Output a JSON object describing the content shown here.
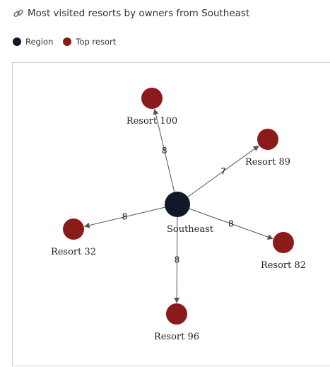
{
  "header": {
    "title": "Most visited resorts by owners from Southeast",
    "icon": "link-icon"
  },
  "legend": {
    "items": [
      {
        "label": "Region",
        "color": "#111827"
      },
      {
        "label": "Top resort",
        "color": "#8b1a1a"
      }
    ]
  },
  "graph": {
    "colors": {
      "region": "#111827",
      "resort": "#8b1a1a",
      "edge": "#555555"
    },
    "center": {
      "label": "Southeast",
      "type": "region"
    },
    "nodes": [
      {
        "label": "Resort 100",
        "type": "resort",
        "weight": "8"
      },
      {
        "label": "Resort 89",
        "type": "resort",
        "weight": "7"
      },
      {
        "label": "Resort 82",
        "type": "resort",
        "weight": "8"
      },
      {
        "label": "Resort 96",
        "type": "resort",
        "weight": "8"
      },
      {
        "label": "Resort 32",
        "type": "resort",
        "weight": "8"
      }
    ]
  }
}
